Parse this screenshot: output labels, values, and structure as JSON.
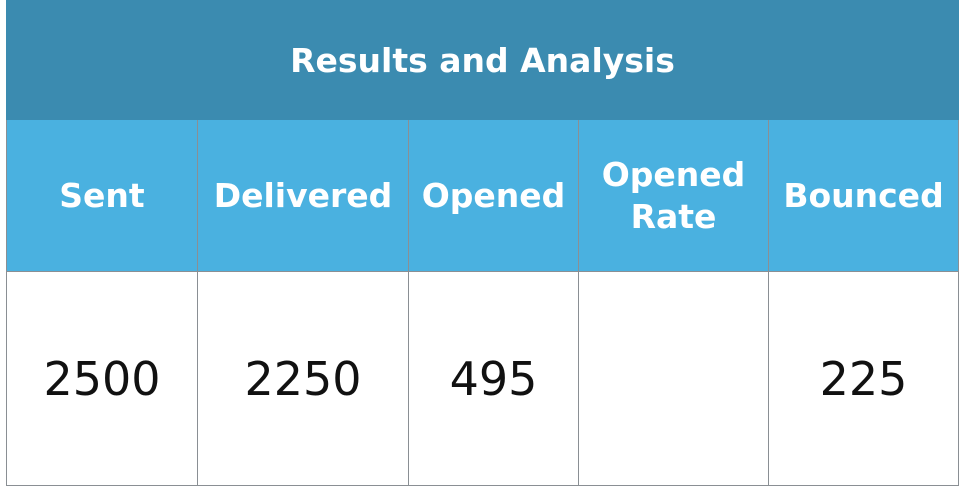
{
  "table": {
    "title": "Results and Analysis",
    "columns": [
      "Sent",
      "Delivered",
      "Opened",
      "Opened Rate",
      "Bounced"
    ],
    "rows": [
      [
        2500,
        2250,
        495,
        null,
        225
      ]
    ]
  }
}
